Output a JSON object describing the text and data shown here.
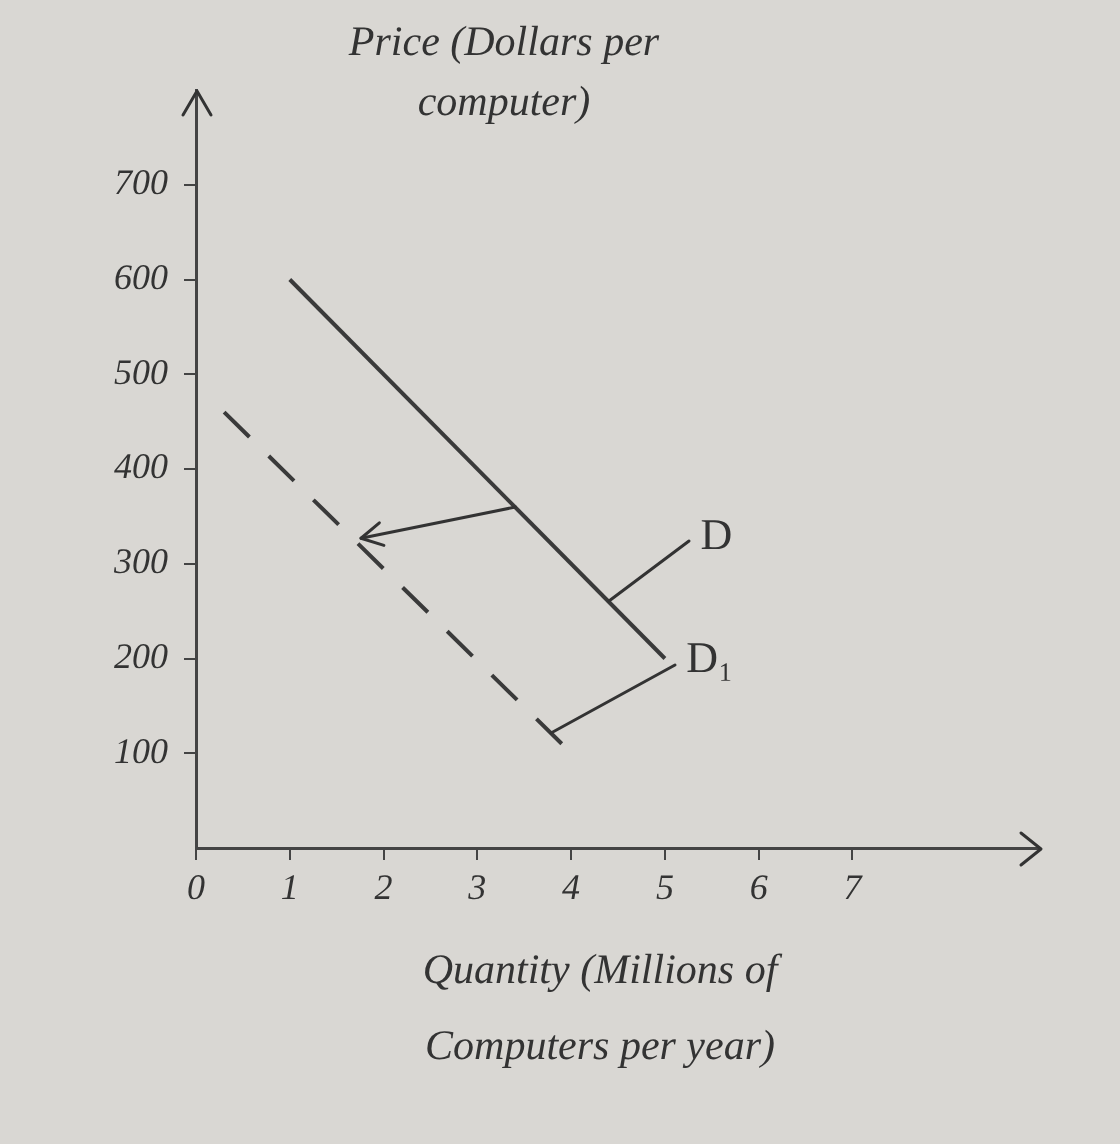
{
  "chart_data": {
    "type": "line",
    "xlabel": "Quantity (Millions of Computers per year)",
    "ylabel": "Price (Dollars per computer)",
    "series": [
      {
        "name": "D",
        "color": "#3a3a3a",
        "x": [
          1,
          5
        ],
        "values": [
          600,
          200
        ],
        "line_style": "solid"
      },
      {
        "name": "D₁",
        "color": "#3a3a3a",
        "x": [
          0.3,
          3.9
        ],
        "values": [
          460,
          110
        ],
        "line_style": "dashed"
      }
    ],
    "xlim": [
      0,
      9
    ],
    "ylim": [
      0,
      800
    ],
    "xticks": [
      0,
      1,
      2,
      3,
      4,
      5,
      6,
      7
    ],
    "yticks": [
      100,
      200,
      300,
      400,
      500,
      600,
      700
    ],
    "legend": false,
    "marker": "none"
  }
}
